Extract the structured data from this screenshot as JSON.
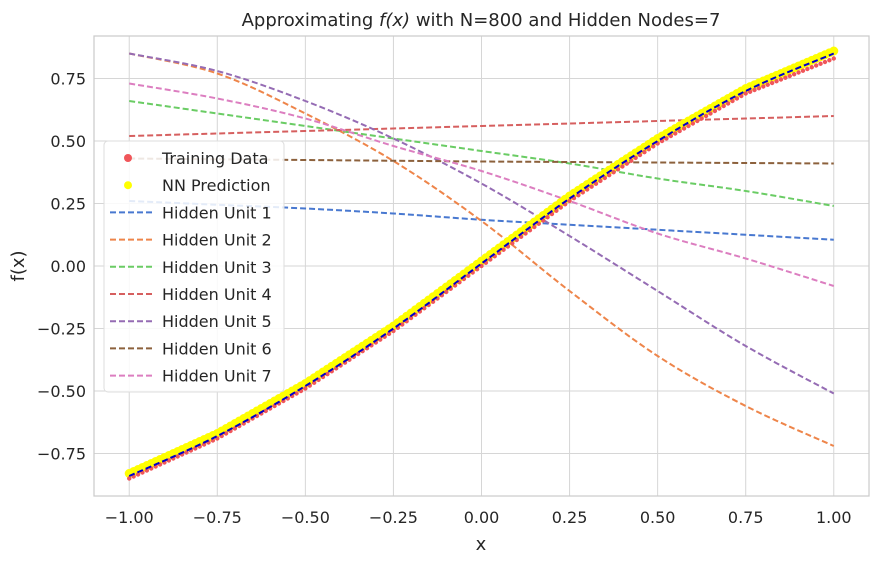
{
  "chart_data": {
    "type": "line",
    "title_prefix": "Approximating ",
    "title_math": "f(x)",
    "title_suffix": " with N=800 and Hidden Nodes=7",
    "xlabel": "x",
    "ylabel": "f(x)",
    "xlim": [
      -1.1,
      1.1
    ],
    "ylim": [
      -0.92,
      0.92
    ],
    "xticks": [
      -1.0,
      -0.75,
      -0.5,
      -0.25,
      0.0,
      0.25,
      0.5,
      0.75,
      1.0
    ],
    "xtick_labels": [
      "−1.00",
      "−0.75",
      "−0.50",
      "−0.25",
      "0.00",
      "0.25",
      "0.50",
      "0.75",
      "1.00"
    ],
    "yticks": [
      -0.75,
      -0.5,
      -0.25,
      0.0,
      0.25,
      0.5,
      0.75
    ],
    "ytick_labels": [
      "−0.75",
      "−0.50",
      "−0.25",
      "0.00",
      "0.25",
      "0.50",
      "0.75"
    ],
    "grid": true,
    "legend_position": "center-left",
    "x": [
      -1.0,
      -0.75,
      -0.5,
      -0.25,
      0.0,
      0.25,
      0.5,
      0.75,
      1.0
    ],
    "training_data": {
      "name": "Training Data",
      "color": "#f0565a",
      "values": [
        -0.85,
        -0.69,
        -0.49,
        -0.26,
        0.0,
        0.26,
        0.49,
        0.69,
        0.83
      ]
    },
    "nn_prediction": {
      "name": "NN Prediction",
      "color": "#ffff00",
      "values": [
        -0.83,
        -0.67,
        -0.47,
        -0.24,
        0.02,
        0.28,
        0.51,
        0.71,
        0.86
      ]
    },
    "fit_line": {
      "color": "#0000cc",
      "values": [
        -0.84,
        -0.68,
        -0.48,
        -0.25,
        0.01,
        0.27,
        0.5,
        0.7,
        0.85
      ]
    },
    "series": [
      {
        "name": "Hidden Unit 1",
        "color": "#4878d0",
        "values": [
          0.26,
          0.245,
          0.23,
          0.21,
          0.185,
          0.165,
          0.145,
          0.125,
          0.105
        ]
      },
      {
        "name": "Hidden Unit 2",
        "color": "#ee854a",
        "values": [
          0.85,
          0.77,
          0.61,
          0.42,
          0.18,
          -0.1,
          -0.36,
          -0.56,
          -0.72
        ]
      },
      {
        "name": "Hidden Unit 3",
        "color": "#6acc64",
        "values": [
          0.66,
          0.61,
          0.56,
          0.51,
          0.46,
          0.41,
          0.35,
          0.3,
          0.24
        ]
      },
      {
        "name": "Hidden Unit 4",
        "color": "#d65f5f",
        "values": [
          0.52,
          0.53,
          0.54,
          0.55,
          0.56,
          0.57,
          0.58,
          0.59,
          0.6
        ]
      },
      {
        "name": "Hidden Unit 5",
        "color": "#956cb4",
        "values": [
          0.85,
          0.78,
          0.66,
          0.51,
          0.33,
          0.12,
          -0.1,
          -0.32,
          -0.51
        ]
      },
      {
        "name": "Hidden Unit 6",
        "color": "#8c613c",
        "values": [
          0.43,
          0.427,
          0.424,
          0.421,
          0.418,
          0.416,
          0.414,
          0.412,
          0.41
        ]
      },
      {
        "name": "Hidden Unit 7",
        "color": "#dc7ec0",
        "values": [
          0.73,
          0.67,
          0.59,
          0.48,
          0.38,
          0.26,
          0.13,
          0.03,
          -0.08
        ]
      }
    ]
  }
}
